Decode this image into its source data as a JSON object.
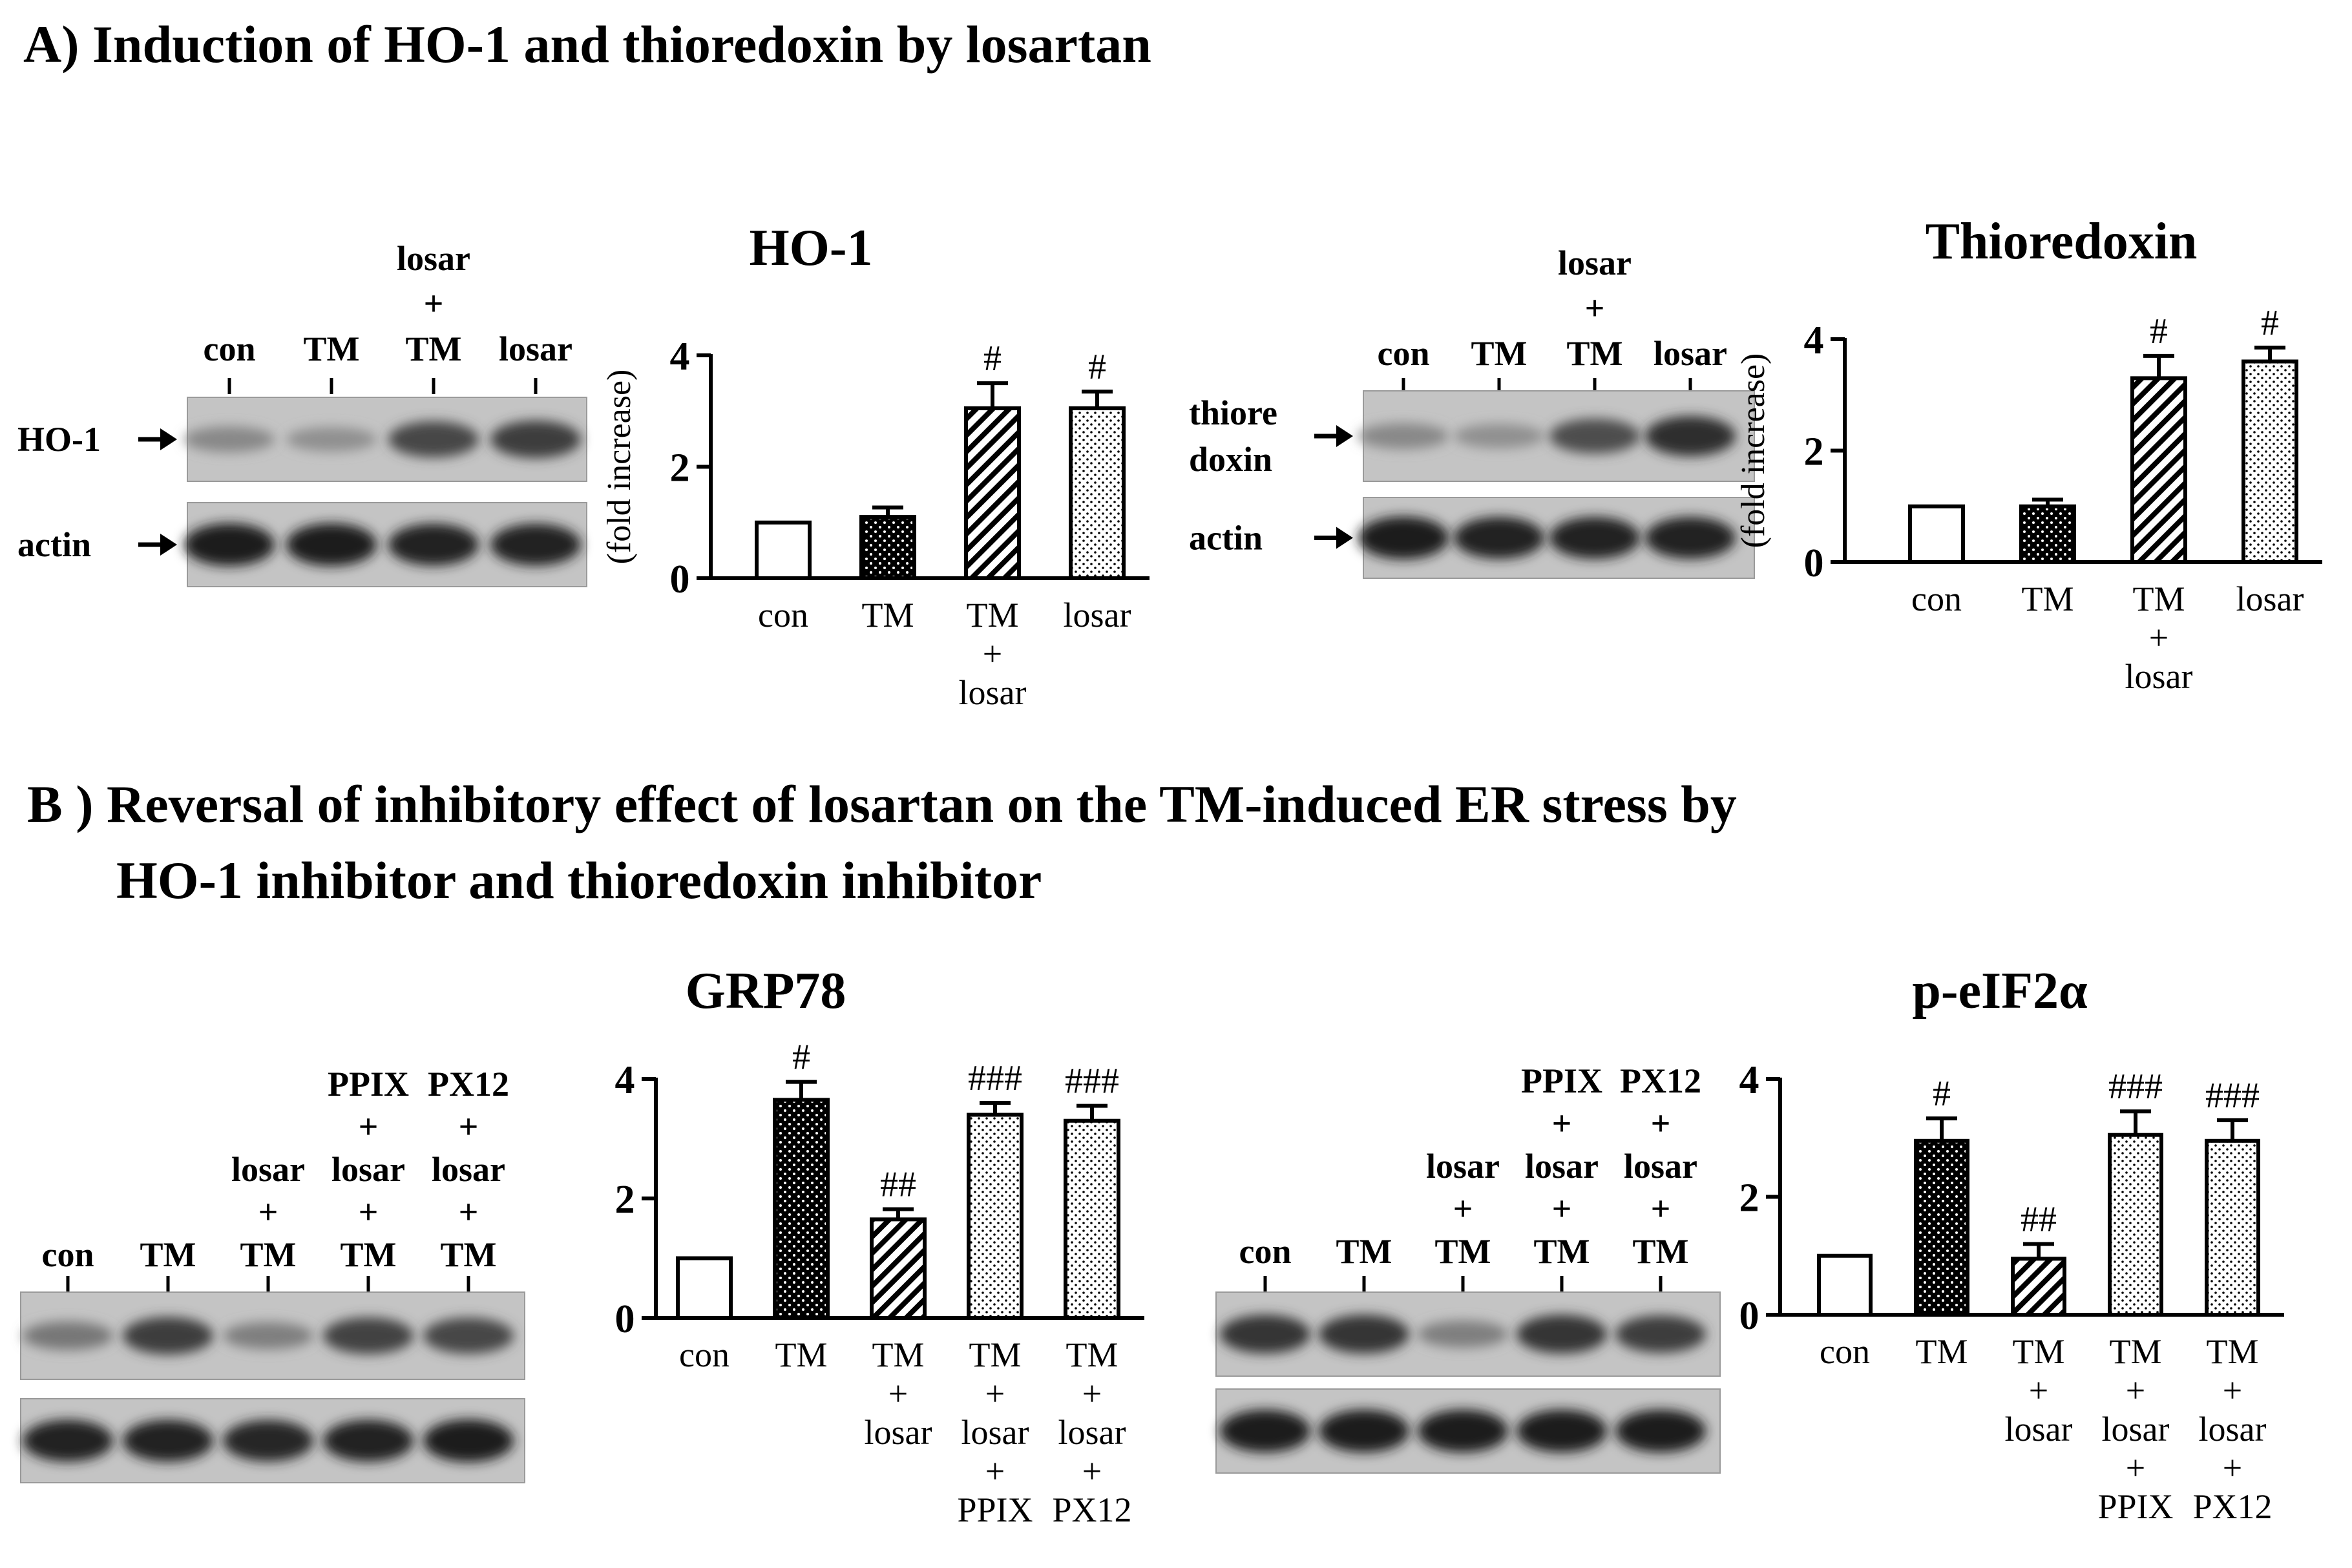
{
  "section_a": {
    "heading": "A) Induction of HO-1 and  thioredoxin by losartan"
  },
  "section_b": {
    "heading_line1": "B ) Reversal of  inhibitory effect of losartan on the TM-induced ER stress by",
    "heading_line2": "HO-1  inhibitor and thioredoxin inhibitor"
  },
  "blots": [
    {
      "lanes": [
        [
          "con"
        ],
        [
          "TM"
        ],
        [
          "losar",
          "+",
          "TM"
        ],
        [
          "losar"
        ]
      ],
      "rows": [
        {
          "label": [
            "HO-1"
          ],
          "arrow": true,
          "intensities": [
            0.3,
            0.25,
            0.7,
            0.75
          ]
        },
        {
          "label": [
            "actin"
          ],
          "arrow": true,
          "intensities": [
            0.95,
            0.95,
            0.92,
            0.92
          ]
        }
      ]
    },
    {
      "lanes": [
        [
          "con"
        ],
        [
          "TM"
        ],
        [
          "losar",
          "+",
          "TM"
        ],
        [
          "losar"
        ]
      ],
      "rows": [
        {
          "label": [
            "thiore",
            "doxin"
          ],
          "arrow": true,
          "intensities": [
            0.3,
            0.25,
            0.65,
            0.85
          ]
        },
        {
          "label": [
            "actin"
          ],
          "arrow": true,
          "intensities": [
            0.95,
            0.92,
            0.92,
            0.92
          ]
        }
      ]
    },
    {
      "lanes": [
        [
          "con"
        ],
        [
          "TM"
        ],
        [
          "losar",
          "+",
          "TM"
        ],
        [
          "PPIX",
          "+",
          "losar",
          "+",
          "TM"
        ],
        [
          "PX12",
          "+",
          "losar",
          "+",
          "TM"
        ]
      ],
      "rows": [
        {
          "label": [],
          "arrow": false,
          "intensities": [
            0.4,
            0.75,
            0.35,
            0.72,
            0.7
          ]
        },
        {
          "label": [],
          "arrow": false,
          "intensities": [
            0.92,
            0.92,
            0.9,
            0.92,
            0.95
          ]
        }
      ]
    },
    {
      "lanes": [
        [
          "con"
        ],
        [
          "TM"
        ],
        [
          "losar",
          "+",
          "TM"
        ],
        [
          "PPIX",
          "+",
          "losar",
          "+",
          "TM"
        ],
        [
          "PX12",
          "+",
          "losar",
          "+",
          "TM"
        ]
      ],
      "rows": [
        {
          "label": [],
          "arrow": false,
          "intensities": [
            0.8,
            0.8,
            0.35,
            0.8,
            0.75
          ]
        },
        {
          "label": [],
          "arrow": false,
          "intensities": [
            0.95,
            0.95,
            0.95,
            0.95,
            0.95
          ]
        }
      ]
    }
  ],
  "chart_data": [
    {
      "type": "bar",
      "title": "HO-1",
      "ylabel": "(fold increase)",
      "ylim": [
        0,
        4
      ],
      "yticks": [
        0,
        2,
        4
      ],
      "categories": [
        [
          "con"
        ],
        [
          "TM"
        ],
        [
          "TM",
          "+",
          "losar"
        ],
        [
          "losar"
        ]
      ],
      "values": [
        1.0,
        1.1,
        3.05,
        3.05
      ],
      "errors": [
        0.0,
        0.17,
        0.45,
        0.3
      ],
      "annotations": [
        "",
        "",
        "#",
        "#"
      ],
      "fills": [
        "white",
        "dots-dark",
        "hatch",
        "dots-light"
      ]
    },
    {
      "type": "bar",
      "title": "Thioredoxin",
      "ylabel": "(fold increase)",
      "ylim": [
        0,
        4
      ],
      "yticks": [
        0,
        2,
        4
      ],
      "categories": [
        [
          "con"
        ],
        [
          "TM"
        ],
        [
          "TM",
          "+",
          "losar"
        ],
        [
          "losar"
        ]
      ],
      "values": [
        1.0,
        1.0,
        3.3,
        3.6
      ],
      "errors": [
        0.0,
        0.12,
        0.4,
        0.25
      ],
      "annotations": [
        "",
        "",
        "#",
        "#"
      ],
      "fills": [
        "white",
        "dots-dark",
        "hatch",
        "dots-light"
      ]
    },
    {
      "type": "bar",
      "title": "GRP78",
      "ylabel": "",
      "ylim": [
        0,
        4
      ],
      "yticks": [
        0,
        2,
        4
      ],
      "categories": [
        [
          "con"
        ],
        [
          "TM"
        ],
        [
          "TM",
          "+",
          "losar"
        ],
        [
          "TM",
          "+",
          "losar",
          "+",
          "PPIX"
        ],
        [
          "TM",
          "+",
          "losar",
          "+",
          "PX12"
        ]
      ],
      "values": [
        1.0,
        3.65,
        1.65,
        3.4,
        3.3
      ],
      "errors": [
        0.0,
        0.3,
        0.17,
        0.2,
        0.25
      ],
      "annotations": [
        "",
        "#",
        "##",
        "###",
        "###"
      ],
      "fills": [
        "white",
        "dots-dark",
        "hatch",
        "dots-light",
        "dots-light"
      ]
    },
    {
      "type": "bar",
      "title": "p-eIF2α",
      "ylabel": "",
      "ylim": [
        0,
        4
      ],
      "yticks": [
        0,
        2,
        4
      ],
      "categories": [
        [
          "con"
        ],
        [
          "TM"
        ],
        [
          "TM",
          "+",
          "losar"
        ],
        [
          "TM",
          "+",
          "losar",
          "+",
          "PPIX"
        ],
        [
          "TM",
          "+",
          "losar",
          "+",
          "PX12"
        ]
      ],
      "values": [
        1.0,
        2.95,
        0.95,
        3.05,
        2.95
      ],
      "errors": [
        0.0,
        0.38,
        0.25,
        0.4,
        0.35
      ],
      "annotations": [
        "",
        "#",
        "##",
        "###",
        "###"
      ],
      "fills": [
        "white",
        "dots-dark",
        "hatch",
        "dots-light",
        "dots-light"
      ]
    }
  ]
}
